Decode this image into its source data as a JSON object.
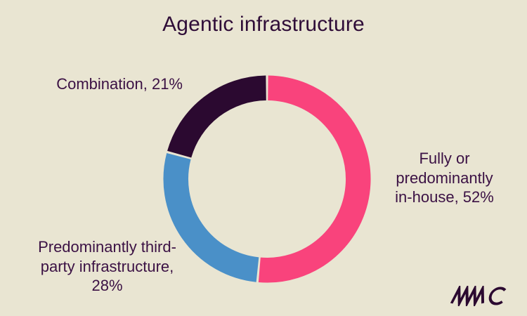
{
  "colors": {
    "background": "#E9E5D2",
    "text": "#3B1144",
    "title": "#2F0D38",
    "logo": "#2B0930"
  },
  "chart_data": {
    "type": "pie",
    "variant": "donut",
    "title": "Agentic infrastructure",
    "direction": "clockwise",
    "start_angle_deg": 0,
    "segments": [
      {
        "id": "in-house",
        "label": "Fully or predominantly in-house",
        "value": 52,
        "color": "#F9437C"
      },
      {
        "id": "third-party",
        "label": "Predominantly third-party infrastructure",
        "value": 28,
        "color": "#4A90C8"
      },
      {
        "id": "combination",
        "label": "Combination",
        "value": 21,
        "color": "#2B0930"
      }
    ]
  },
  "annotations": {
    "combination": [
      "Combination, 21%"
    ],
    "in_house": [
      "Fully or",
      "predominantly",
      "in-house, 52%"
    ],
    "third_party": [
      "Predominantly third-",
      "party infrastructure,",
      "28%"
    ]
  },
  "logo": {
    "text": "MMC"
  }
}
